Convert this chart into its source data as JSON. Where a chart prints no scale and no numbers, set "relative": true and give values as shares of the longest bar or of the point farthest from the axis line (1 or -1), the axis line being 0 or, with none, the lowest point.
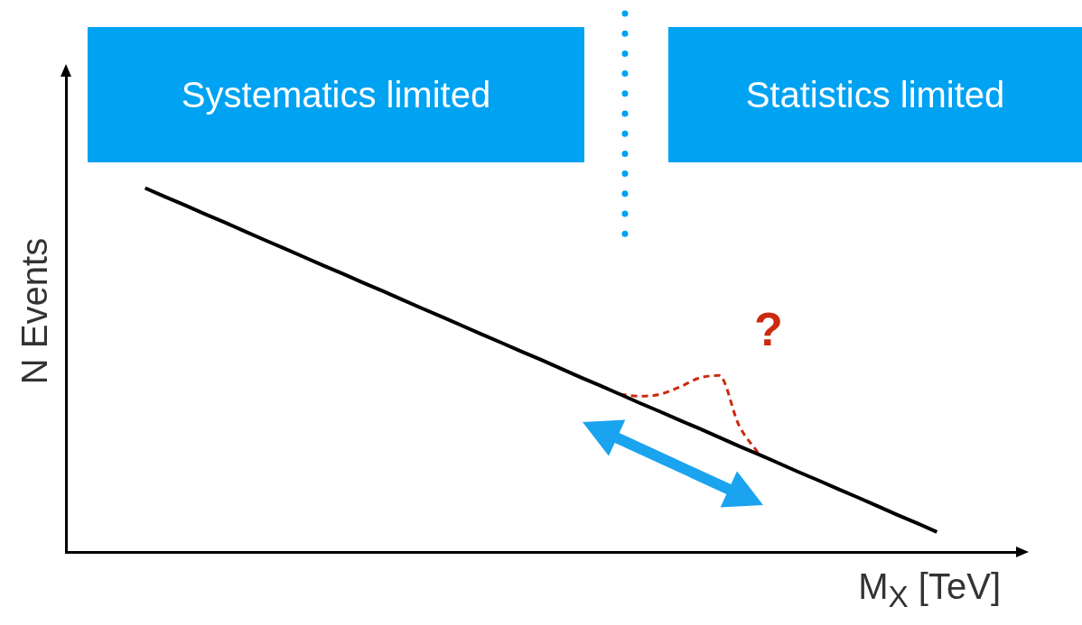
{
  "chart_data": {
    "type": "line",
    "relative": true,
    "xlabel": "M$_{X}$ [TeV]",
    "ylabel": "N Events",
    "categories": [
      null,
      null,
      null,
      null,
      null,
      null,
      null,
      null,
      null,
      null,
      null,
      null,
      null,
      null,
      null,
      null,
      null,
      null,
      null,
      null,
      null,
      null,
      null,
      null,
      null,
      null,
      null,
      null,
      null,
      null,
      null,
      null,
      null,
      null,
      null,
      null,
      null,
      null,
      null,
      null,
      null,
      null,
      null,
      null,
      null,
      null,
      null,
      null,
      null
    ],
    "series": [
      {
        "color": "#000000",
        "values": [
          null,
          null,
          null,
          null,
          1,
          0.976,
          0.953,
          0.929,
          0.906,
          0.882,
          0.858,
          0.835,
          0.811,
          0.787,
          0.764,
          0.74,
          0.717,
          0.693,
          0.669,
          0.646,
          0.622,
          0.598,
          0.575,
          0.551,
          0.528,
          0.504,
          0.48,
          0.457,
          0.433,
          0.409,
          0.386,
          0.362,
          0.339,
          0.315,
          0.291,
          0.268,
          0.244,
          0.22,
          0.197,
          0.173,
          0.15,
          0.126,
          0.102,
          0.079,
          0.055,
          null,
          null,
          null,
          null
        ]
      },
      {
        "color": "#cc2a10",
        "line_style": "dashed",
        "values": [
          null,
          null,
          null,
          null,
          null,
          null,
          null,
          null,
          null,
          null,
          null,
          null,
          null,
          null,
          null,
          null,
          null,
          null,
          null,
          null,
          null,
          null,
          null,
          null,
          null,
          null,
          null,
          null,
          0.433,
          0.428,
          0.433,
          0.453,
          0.478,
          0.485,
          0.348,
          0.27,
          null,
          null,
          null,
          null,
          null,
          null,
          null,
          null,
          null,
          null,
          null,
          null,
          null
        ]
      }
    ],
    "annotations": [
      "Systematics limited",
      "Statistics limited",
      "?"
    ],
    "grid": false,
    "legend": false,
    "marker": "none"
  }
}
